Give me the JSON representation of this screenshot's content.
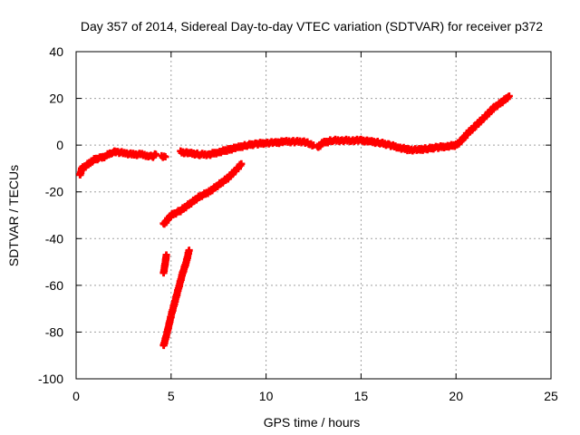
{
  "chart_data": {
    "type": "scatter",
    "title": "Day 357 of 2014, Sidereal Day-to-day VTEC variation (SDTVAR) for receiver p372",
    "xlabel": "GPS time / hours",
    "ylabel": "SDTVAR / TECUs",
    "xlim": [
      0,
      25
    ],
    "ylim": [
      -100,
      40
    ],
    "xticks": [
      0,
      5,
      10,
      15,
      20,
      25
    ],
    "yticks": [
      -100,
      -80,
      -60,
      -40,
      -20,
      0,
      20,
      40
    ],
    "grid": true,
    "color": "#ff0000",
    "series": [
      {
        "name": "main-track",
        "points": [
          [
            0.2,
            -13
          ],
          [
            0.3,
            -10
          ],
          [
            0.5,
            -9
          ],
          [
            0.8,
            -7
          ],
          [
            1.0,
            -6
          ],
          [
            1.3,
            -5.5
          ],
          [
            1.6,
            -4.5
          ],
          [
            1.9,
            -3
          ],
          [
            2.2,
            -3
          ],
          [
            2.6,
            -3.5
          ],
          [
            3.0,
            -4
          ],
          [
            3.4,
            -4
          ],
          [
            3.8,
            -4.5
          ],
          [
            4.0,
            -5
          ],
          [
            4.2,
            -4
          ]
        ]
      },
      {
        "name": "main-track-2",
        "points": [
          [
            4.5,
            -5
          ],
          [
            4.7,
            -5
          ]
        ]
      },
      {
        "name": "main-track-3",
        "points": [
          [
            5.5,
            -3
          ],
          [
            6.0,
            -3.5
          ],
          [
            6.5,
            -4
          ],
          [
            7.0,
            -4
          ],
          [
            7.5,
            -3
          ],
          [
            8.0,
            -2
          ],
          [
            8.5,
            -1
          ],
          [
            9.0,
            0
          ],
          [
            9.5,
            0.5
          ],
          [
            10.0,
            1
          ],
          [
            10.5,
            1
          ],
          [
            11.0,
            1.5
          ],
          [
            11.5,
            1.5
          ],
          [
            12.0,
            1.5
          ],
          [
            12.3,
            0.5
          ],
          [
            12.5,
            0
          ]
        ]
      },
      {
        "name": "main-track-4",
        "points": [
          [
            12.7,
            -1
          ],
          [
            13.0,
            1
          ],
          [
            13.5,
            2
          ],
          [
            14.0,
            2
          ],
          [
            14.5,
            2
          ],
          [
            15.0,
            2
          ],
          [
            15.5,
            1.5
          ],
          [
            16.0,
            1
          ],
          [
            16.5,
            0
          ],
          [
            17.0,
            -1
          ],
          [
            17.5,
            -2
          ],
          [
            18.0,
            -2
          ],
          [
            18.5,
            -1.5
          ],
          [
            19.0,
            -1
          ],
          [
            19.5,
            -0.5
          ],
          [
            20.0,
            0
          ],
          [
            20.3,
            2
          ],
          [
            20.6,
            5
          ],
          [
            21.0,
            8
          ],
          [
            21.5,
            12
          ],
          [
            22.0,
            16
          ],
          [
            22.5,
            19
          ],
          [
            22.8,
            21
          ]
        ]
      },
      {
        "name": "slant-track",
        "points": [
          [
            4.6,
            -34
          ],
          [
            5.0,
            -30
          ],
          [
            5.5,
            -28
          ],
          [
            6.0,
            -25
          ],
          [
            6.5,
            -22
          ],
          [
            7.0,
            -20
          ],
          [
            7.5,
            -17
          ],
          [
            8.0,
            -14
          ],
          [
            8.5,
            -10
          ],
          [
            8.7,
            -8
          ]
        ]
      },
      {
        "name": "steep-short",
        "points": [
          [
            4.6,
            -55
          ],
          [
            4.7,
            -50
          ],
          [
            4.75,
            -47
          ]
        ]
      },
      {
        "name": "steep-long",
        "points": [
          [
            4.6,
            -86
          ],
          [
            4.8,
            -80
          ],
          [
            5.0,
            -73
          ],
          [
            5.2,
            -67
          ],
          [
            5.4,
            -61
          ],
          [
            5.6,
            -55
          ],
          [
            5.8,
            -50
          ],
          [
            5.95,
            -45
          ]
        ]
      }
    ]
  }
}
